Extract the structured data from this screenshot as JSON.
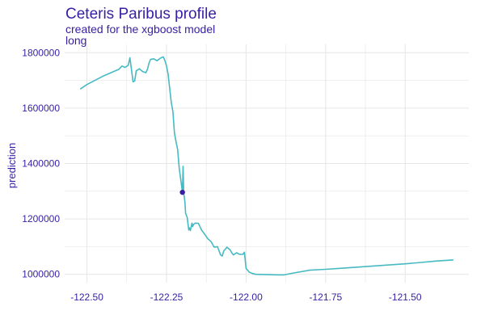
{
  "chart_data": {
    "type": "line",
    "title": "Ceteris Paribus profile",
    "subtitle": "created for the xgboost model",
    "facet_label": "long",
    "xlabel": "",
    "ylabel": "prediction",
    "xlim": [
      -122.57,
      -121.3
    ],
    "ylim": [
      970000,
      1830000
    ],
    "x_ticks": [
      -122.5,
      -122.25,
      -122.0,
      -121.75,
      -121.5
    ],
    "x_tick_labels": [
      "-122.50",
      "-122.25",
      "-122.00",
      "-121.75",
      "-121.50"
    ],
    "y_ticks": [
      1000000,
      1200000,
      1400000,
      1600000,
      1800000
    ],
    "y_tick_labels": [
      "1000000",
      "1200000",
      "1400000",
      "1600000",
      "1800000"
    ],
    "grid": true,
    "line_color": "#46bac2",
    "point_color": "#371ea3",
    "series": [
      {
        "x": [
          -122.52,
          -122.5,
          -122.45,
          -122.4,
          -122.39,
          -122.38,
          -122.37,
          -122.365,
          -122.36,
          -122.355,
          -122.35,
          -122.345,
          -122.335,
          -122.325,
          -122.315,
          -122.31,
          -122.305,
          -122.3,
          -122.29,
          -122.28,
          -122.27,
          -122.26,
          -122.255,
          -122.25,
          -122.245,
          -122.24,
          -122.235,
          -122.23,
          -122.225,
          -122.22,
          -122.215,
          -122.21,
          -122.205,
          -122.2,
          -122.198,
          -122.196,
          -122.192,
          -122.19,
          -122.185,
          -122.18,
          -122.178,
          -122.175,
          -122.17,
          -122.168,
          -122.165,
          -122.16,
          -122.15,
          -122.14,
          -122.13,
          -122.12,
          -122.11,
          -122.1,
          -122.09,
          -122.08,
          -122.075,
          -122.07,
          -122.06,
          -122.05,
          -122.045,
          -122.04,
          -122.03,
          -122.02,
          -122.01,
          -122.005,
          -122.0,
          -121.99,
          -121.98,
          -121.97,
          -121.9,
          -121.88,
          -121.85,
          -121.8,
          -121.75,
          -121.7,
          -121.6,
          -121.5,
          -121.45,
          -121.4,
          -121.35
        ],
        "y": [
          1670000,
          1685000,
          1715000,
          1740000,
          1752000,
          1747000,
          1755000,
          1782000,
          1738000,
          1695000,
          1698000,
          1735000,
          1742000,
          1732000,
          1728000,
          1740000,
          1762000,
          1776000,
          1778000,
          1771000,
          1780000,
          1785000,
          1772000,
          1752000,
          1722000,
          1672000,
          1620000,
          1588000,
          1510000,
          1478000,
          1450000,
          1384000,
          1340000,
          1296000,
          1390000,
          1295000,
          1260000,
          1220000,
          1205000,
          1160000,
          1168000,
          1158000,
          1185000,
          1172000,
          1180000,
          1185000,
          1184000,
          1160000,
          1145000,
          1128000,
          1118000,
          1098000,
          1100000,
          1070000,
          1066000,
          1085000,
          1098000,
          1088000,
          1078000,
          1070000,
          1078000,
          1072000,
          1072000,
          1080000,
          1022000,
          1008000,
          1003000,
          1000000,
          998000,
          998000,
          1005000,
          1015000,
          1018000,
          1022000,
          1030000,
          1038000,
          1043000,
          1048000,
          1052000
        ]
      }
    ],
    "observation": {
      "x": -122.2,
      "y": 1296000
    }
  }
}
